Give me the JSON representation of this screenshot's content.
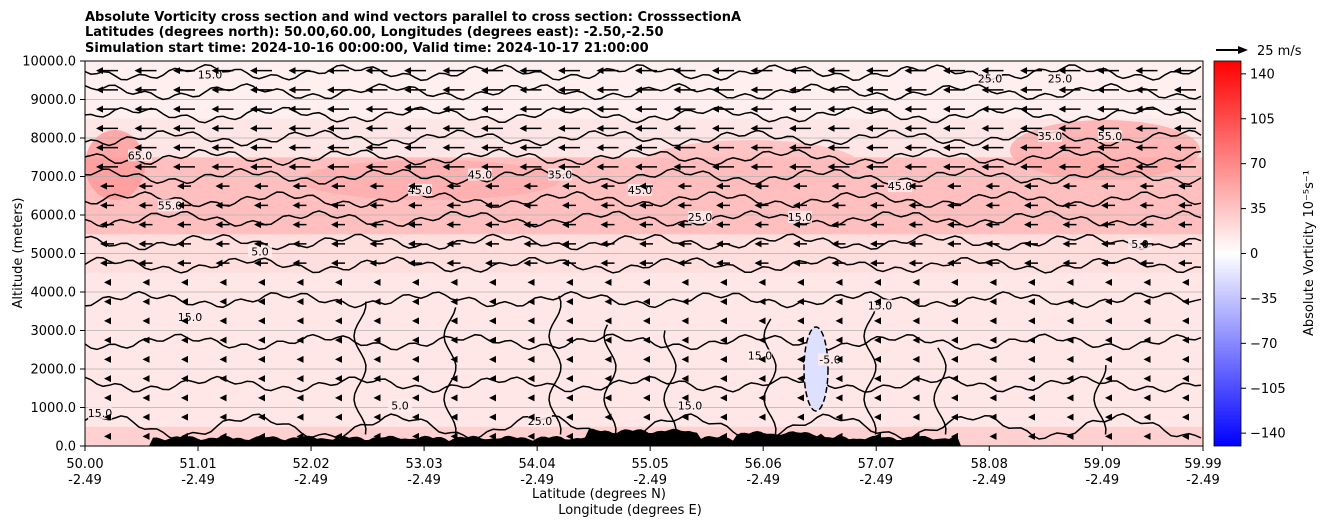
{
  "chart_data": {
    "type": "heatmap",
    "title_lines": [
      "Absolute Vorticity cross section and wind vectors parallel to cross section: CrosssectionA",
      "Latitudes (degrees north): 50.00,60.00, Longitudes (degrees east): -2.50,-2.50",
      "Simulation start time: 2024-10-16 00:00:00, Valid time: 2024-10-17 21:00:00"
    ],
    "ylabel": "Altitude (meters)",
    "xlabel_lines": [
      "Latitude (degrees N)",
      "Longitude (degrees E)"
    ],
    "ylim": [
      0,
      10000
    ],
    "xlim": [
      50.0,
      59.99
    ],
    "y_ticks": [
      "0.0",
      "1000.0",
      "2000.0",
      "3000.0",
      "4000.0",
      "5000.0",
      "6000.0",
      "7000.0",
      "8000.0",
      "9000.0",
      "10000.0"
    ],
    "x_ticks": [
      {
        "lat": "50.00",
        "lon": "-2.49"
      },
      {
        "lat": "51.01",
        "lon": "-2.49"
      },
      {
        "lat": "52.02",
        "lon": "-2.49"
      },
      {
        "lat": "53.03",
        "lon": "-2.49"
      },
      {
        "lat": "54.04",
        "lon": "-2.49"
      },
      {
        "lat": "55.05",
        "lon": "-2.49"
      },
      {
        "lat": "56.06",
        "lon": "-2.49"
      },
      {
        "lat": "57.07",
        "lon": "-2.49"
      },
      {
        "lat": "58.08",
        "lon": "-2.49"
      },
      {
        "lat": "59.09",
        "lon": "-2.49"
      },
      {
        "lat": "59.99",
        "lon": "-2.49"
      }
    ],
    "grid": "horizontal",
    "colorbar": {
      "label": "Absolute Vorticity 10⁻⁵s⁻¹",
      "range": [
        -150,
        150
      ],
      "ticks": [
        "140",
        "105",
        "70",
        "35",
        "0",
        "−35",
        "−70",
        "−105",
        "−140"
      ],
      "cmap": "bwr"
    },
    "wind_reference": {
      "label": "25 m/s"
    },
    "wind_direction": "northward-to-southward (left-pointing)",
    "contour_labels": [
      "5.0",
      "15.0",
      "25.0",
      "35.0",
      "45.0",
      "55.0",
      "65.0",
      "-5.0"
    ],
    "vorticity_bands": [
      {
        "alt_from": 0,
        "alt_to": 500,
        "value": 30
      },
      {
        "alt_from": 500,
        "alt_to": 4500,
        "value": 14
      },
      {
        "alt_from": 4500,
        "alt_to": 5500,
        "value": 20
      },
      {
        "alt_from": 5500,
        "alt_to": 7500,
        "value": 42
      },
      {
        "alt_from": 7500,
        "alt_to": 8500,
        "value": 15
      },
      {
        "alt_from": 8500,
        "alt_to": 10000,
        "value": 8
      }
    ]
  },
  "colors": {
    "positive": "#ff0000",
    "negative": "#0000ff",
    "zero": "#ffffff",
    "terrain": "#000000"
  }
}
